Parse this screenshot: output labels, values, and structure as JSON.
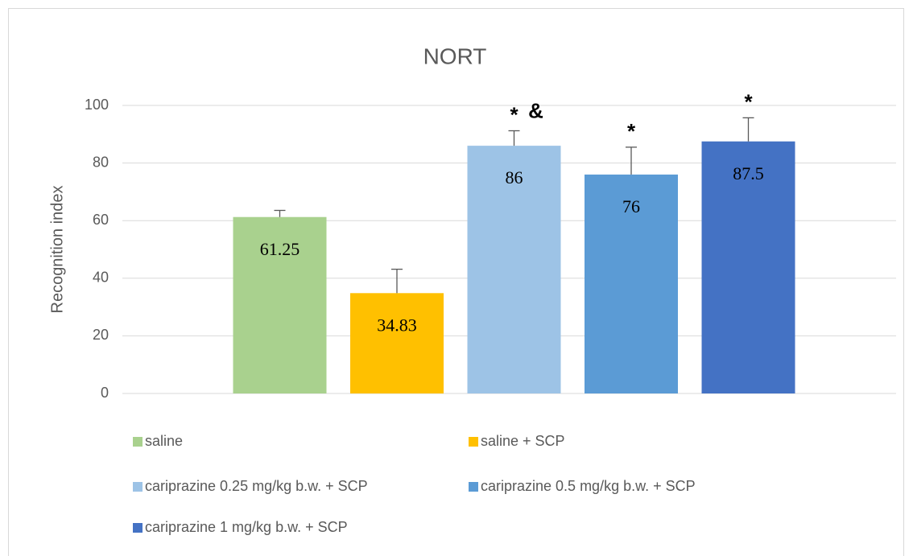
{
  "chart_data": {
    "type": "bar",
    "title": "NORT",
    "y_label": "Recognition index",
    "ylim": [
      0,
      100
    ],
    "yticks": [
      0,
      20,
      40,
      60,
      80,
      100
    ],
    "grid": true,
    "series": [
      {
        "name": "saline",
        "color": "#a9d18e",
        "values": [
          61.25
        ],
        "errors": [
          2.3
        ]
      },
      {
        "name": "saline + SCP",
        "color": "#ffc000",
        "values": [
          34.83
        ],
        "errors": [
          8.3
        ]
      },
      {
        "name": "cariprazine 0.25 mg/kg b.w. + SCP",
        "color": "#9dc3e6",
        "values": [
          86
        ],
        "errors": [
          5.2
        ],
        "annotations": [
          "*",
          "&"
        ]
      },
      {
        "name": "cariprazine 0.5 mg/kg b.w. + SCP",
        "color": "#5b9bd5",
        "values": [
          76
        ],
        "errors": [
          9.5
        ],
        "annotations": [
          "*"
        ]
      },
      {
        "name": "cariprazine 1 mg/kg b.w. + SCP",
        "color": "#4472c4",
        "values": [
          87.5
        ],
        "errors": [
          8.2
        ],
        "annotations": [
          "*"
        ]
      }
    ]
  }
}
